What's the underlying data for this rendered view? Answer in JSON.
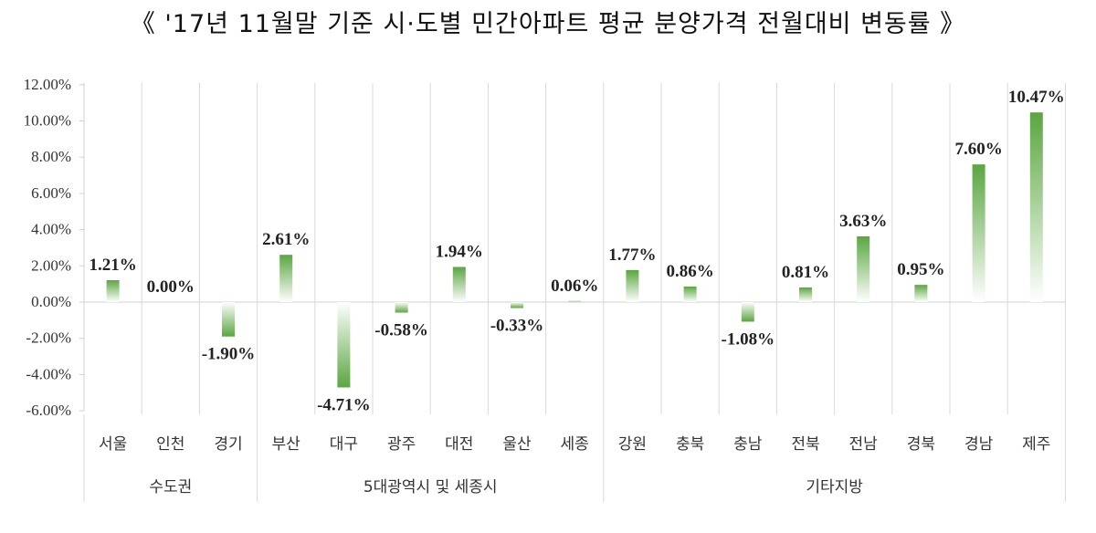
{
  "chart_data": {
    "type": "bar",
    "title": "《 '17년 11월말 기준 시·도별 민간아파트 평균 분양가격 전월대비 변동률 》",
    "categories": [
      "서울",
      "인천",
      "경기",
      "부산",
      "대구",
      "광주",
      "대전",
      "울산",
      "세종",
      "강원",
      "충북",
      "충남",
      "전북",
      "전남",
      "경북",
      "경남",
      "제주"
    ],
    "values": [
      1.21,
      0.0,
      -1.9,
      2.61,
      -4.71,
      -0.58,
      1.94,
      -0.33,
      0.06,
      1.77,
      0.86,
      -1.08,
      0.81,
      3.63,
      0.95,
      7.6,
      10.47
    ],
    "data_labels": [
      "1.21%",
      "0.00%",
      "-1.90%",
      "2.61%",
      "-4.71%",
      "-0.58%",
      "1.94%",
      "-0.33%",
      "0.06%",
      "1.77%",
      "0.86%",
      "-1.08%",
      "0.81%",
      "3.63%",
      "0.95%",
      "7.60%",
      "10.47%"
    ],
    "groups": [
      {
        "name": "수도권",
        "count": 3
      },
      {
        "name": "5대광역시 및 세종시",
        "count": 6
      },
      {
        "name": "기타지방",
        "count": 8
      }
    ],
    "ylim": [
      -6,
      12
    ],
    "yticks": [
      12,
      10,
      8,
      6,
      4,
      2,
      0,
      -2,
      -4,
      -6
    ],
    "ytick_labels": [
      "12.00%",
      "10.00%",
      "8.00%",
      "6.00%",
      "4.00%",
      "2.00%",
      "0.00%",
      "-2.00%",
      "-4.00%",
      "-6.00%"
    ],
    "xlabel": "",
    "ylabel": "",
    "grid": "vertical category separators",
    "legend": "none",
    "colors": {
      "bar": "#5aa640",
      "bar_fade": "#ffffff",
      "axis": "#d0d0d0",
      "separator": "#d9d9d9"
    }
  }
}
